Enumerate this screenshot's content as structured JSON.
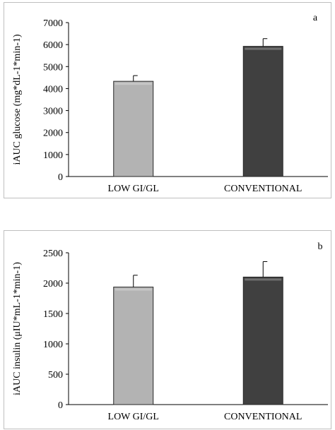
{
  "chart_data": [
    {
      "type": "bar",
      "panel_label": "a",
      "categories": [
        "LOW GI/GL",
        "CONVENTIONAL"
      ],
      "values": [
        4330,
        5920
      ],
      "errors": [
        260,
        350
      ],
      "ylabel": "iAUC glucose (mg*dL-1*min-1)",
      "ylim": [
        0,
        7000
      ],
      "yticks": [
        0,
        1000,
        2000,
        3000,
        4000,
        5000,
        6000,
        7000
      ],
      "colors": [
        "#b3b3b3",
        "#404040"
      ],
      "grid": false
    },
    {
      "type": "bar",
      "panel_label": "b",
      "categories": [
        "LOW GI/GL",
        "CONVENTIONAL"
      ],
      "values": [
        1935,
        2100
      ],
      "errors": [
        195,
        255
      ],
      "ylabel": "iAUC insulin (μIU*mL-1*min-1)",
      "ylim": [
        0,
        2500
      ],
      "yticks": [
        0,
        500,
        1000,
        1500,
        2000,
        2500
      ],
      "colors": [
        "#b3b3b3",
        "#404040"
      ],
      "grid": false
    }
  ]
}
